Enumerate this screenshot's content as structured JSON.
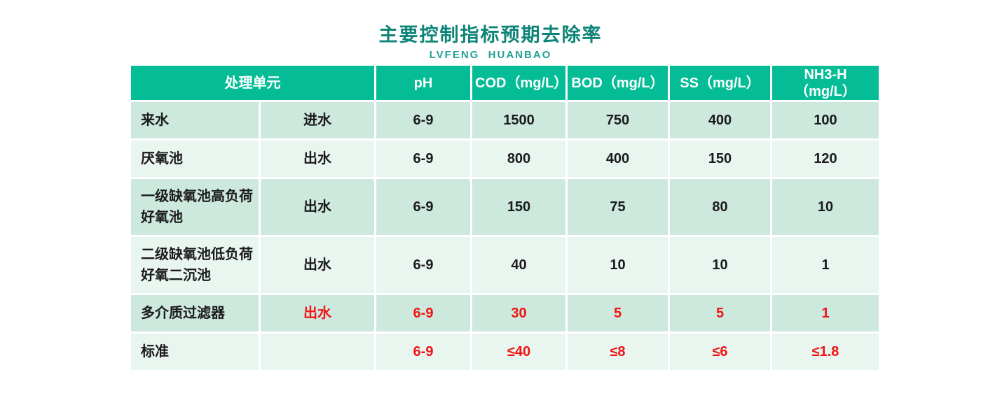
{
  "title": "主要控制指标预期去除率",
  "subtitle": "LVFENG  HUANBAO",
  "colors": {
    "header_bg": "#04bd96",
    "row_odd_bg": "#cde8dc",
    "row_even_bg": "#e9f5ef",
    "title_color": "#0e8478",
    "subtitle_color": "#23a094",
    "red_color": "#f01414",
    "text_color": "#1b1b1b"
  },
  "table": {
    "headers": {
      "unit": "处理单元",
      "ph": "pH",
      "cod": "COD（mg/L）",
      "bod": "BOD（mg/L）",
      "ss": "SS（mg/L）",
      "nh3_line1": "NH3-H",
      "nh3_line2": "（mg/L）"
    },
    "rows": [
      {
        "unit": "来水",
        "flow": "进水",
        "ph": "6-9",
        "cod": "1500",
        "bod": "750",
        "ss": "400",
        "nh3": "100"
      },
      {
        "unit": "厌氧池",
        "flow": "出水",
        "ph": "6-9",
        "cod": "800",
        "bod": "400",
        "ss": "150",
        "nh3": "120"
      },
      {
        "unit": "一级缺氧池高负荷好氧池",
        "flow": "出水",
        "ph": "6-9",
        "cod": "150",
        "bod": "75",
        "ss": "80",
        "nh3": "10"
      },
      {
        "unit": "二级缺氧池低负荷好氧二沉池",
        "flow": "出水",
        "ph": "6-9",
        "cod": "40",
        "bod": "10",
        "ss": "10",
        "nh3": "1"
      },
      {
        "unit": "多介质过滤器",
        "flow": "出水",
        "ph": "6-9",
        "cod": "30",
        "bod": "5",
        "ss": "5",
        "nh3": "1"
      },
      {
        "unit": "标准",
        "flow": "",
        "ph": "6-9",
        "cod": "≤40",
        "bod": "≤8",
        "ss": "≤6",
        "nh3": "≤1.8"
      }
    ]
  },
  "chart_data": {
    "type": "table",
    "title": "主要控制指标预期去除率",
    "subtitle": "LVFENG HUANBAO",
    "columns": [
      "处理单元",
      "进水/出水",
      "pH",
      "COD（mg/L）",
      "BOD（mg/L）",
      "SS（mg/L）",
      "NH3-H（mg/L）"
    ],
    "rows": [
      [
        "来水",
        "进水",
        "6-9",
        "1500",
        "750",
        "400",
        "100"
      ],
      [
        "厌氧池",
        "出水",
        "6-9",
        "800",
        "400",
        "150",
        "120"
      ],
      [
        "一级缺氧池高负荷好氧池",
        "出水",
        "6-9",
        "150",
        "75",
        "80",
        "10"
      ],
      [
        "二级缺氧池低负荷好氧二沉池",
        "出水",
        "6-9",
        "40",
        "10",
        "10",
        "1"
      ],
      [
        "多介质过滤器",
        "出水",
        "6-9",
        "30",
        "5",
        "5",
        "1"
      ],
      [
        "标准",
        "",
        "6-9",
        "≤40",
        "≤8",
        "≤6",
        "≤1.8"
      ]
    ],
    "highlight_red_rows": [
      4,
      5
    ],
    "legend_position": "none",
    "grid": true
  }
}
